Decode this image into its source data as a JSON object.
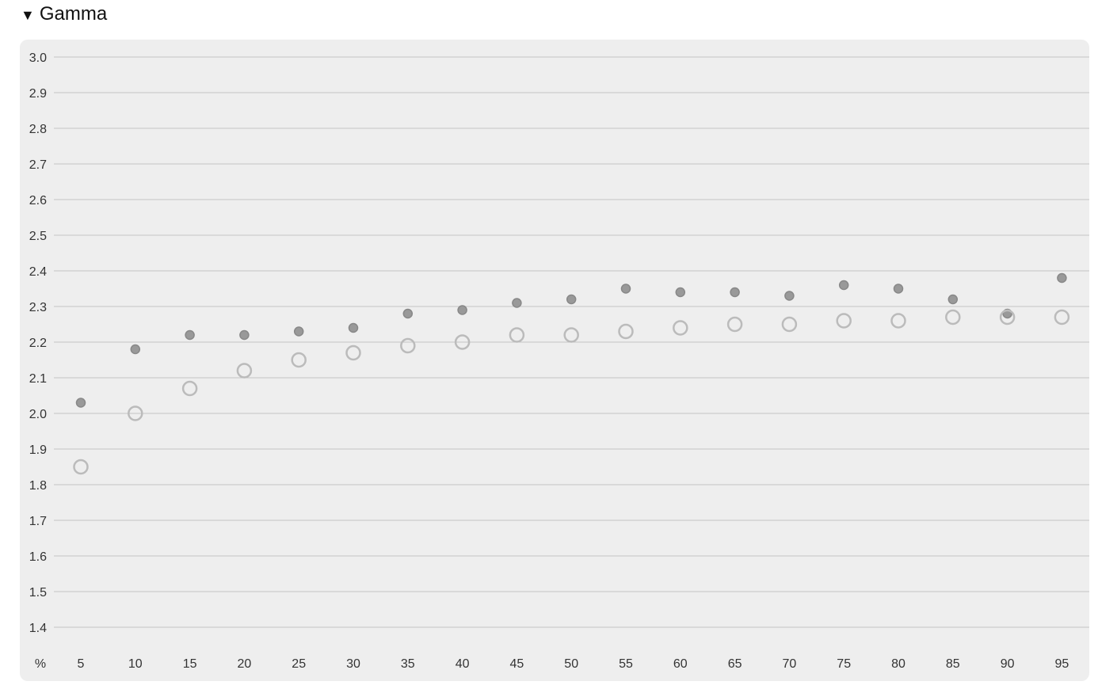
{
  "section": {
    "title": "Gamma",
    "toggle_icon": "triangle-down-icon"
  },
  "chart_data": {
    "type": "scatter",
    "x_unit_label": "%",
    "x": [
      5,
      10,
      15,
      20,
      25,
      30,
      35,
      40,
      45,
      50,
      55,
      60,
      65,
      70,
      75,
      80,
      85,
      90,
      95
    ],
    "ylim": [
      1.4,
      3.0
    ],
    "yticks": [
      "3.0",
      "2.9",
      "2.8",
      "2.7",
      "2.6",
      "2.5",
      "2.4",
      "2.3",
      "2.2",
      "2.1",
      "2.0",
      "1.9",
      "1.8",
      "1.7",
      "1.6",
      "1.5",
      "1.4"
    ],
    "grid": true,
    "series": [
      {
        "style": "filled",
        "color": "#999999",
        "stroke": "#888888",
        "values": [
          2.03,
          2.18,
          2.22,
          2.22,
          2.23,
          2.24,
          2.28,
          2.29,
          2.31,
          2.32,
          2.35,
          2.34,
          2.34,
          2.33,
          2.36,
          2.35,
          2.32,
          2.28,
          2.38
        ]
      },
      {
        "style": "hollow",
        "color": "#bbbbbb",
        "values": [
          1.85,
          2.0,
          2.07,
          2.12,
          2.15,
          2.17,
          2.19,
          2.2,
          2.22,
          2.22,
          2.23,
          2.24,
          2.25,
          2.25,
          2.26,
          2.26,
          2.27,
          2.27,
          2.27
        ]
      }
    ]
  }
}
